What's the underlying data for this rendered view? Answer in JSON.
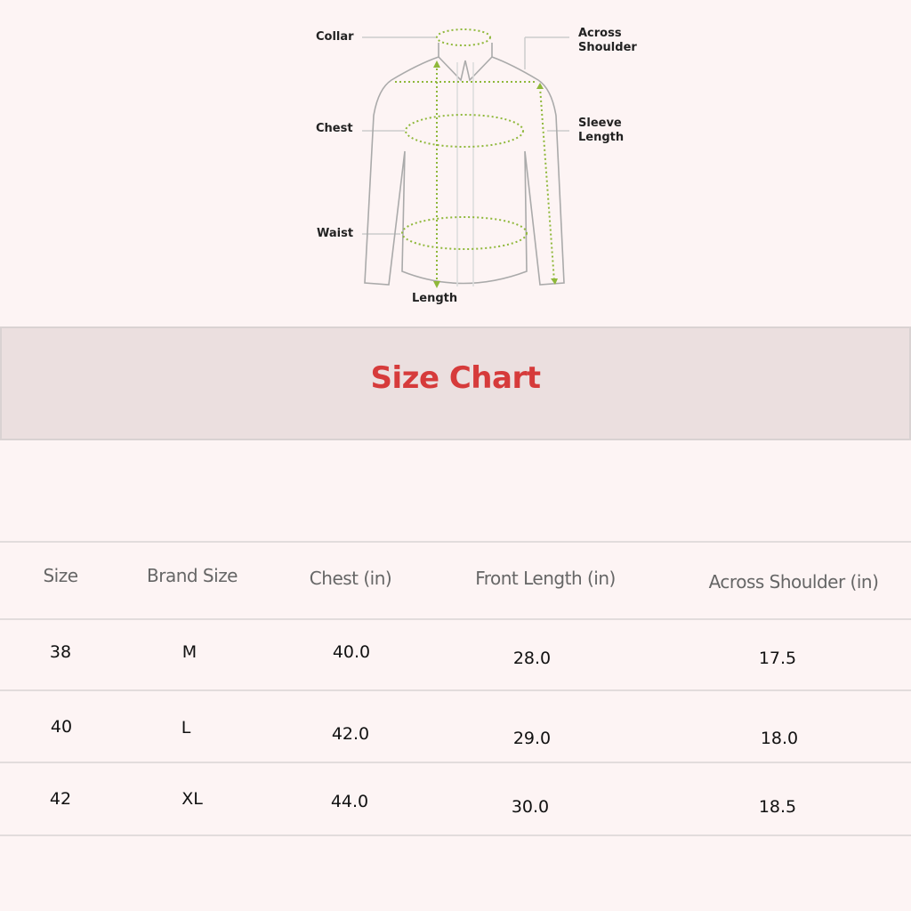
{
  "diagram": {
    "labels": {
      "collar": "Collar",
      "across_shoulder_1": "Across",
      "across_shoulder_2": "Shoulder",
      "chest": "Chest",
      "sleeve_length_1": "Sleeve",
      "sleeve_length_2": "Length",
      "waist": "Waist",
      "length": "Length"
    },
    "measure_color": "#8fb83a"
  },
  "banner": {
    "title": "Size Chart",
    "title_color": "#d63b3b"
  },
  "table": {
    "headers": [
      "Size",
      "Brand Size",
      "Chest (in)",
      "Front Length (in)",
      "Across Shoulder (in)"
    ],
    "rows": [
      [
        "38",
        "M",
        "40.0",
        "28.0",
        "17.5"
      ],
      [
        "40",
        "L",
        "42.0",
        "29.0",
        "18.0"
      ],
      [
        "42",
        "XL",
        "44.0",
        "30.0",
        "18.5"
      ]
    ]
  }
}
